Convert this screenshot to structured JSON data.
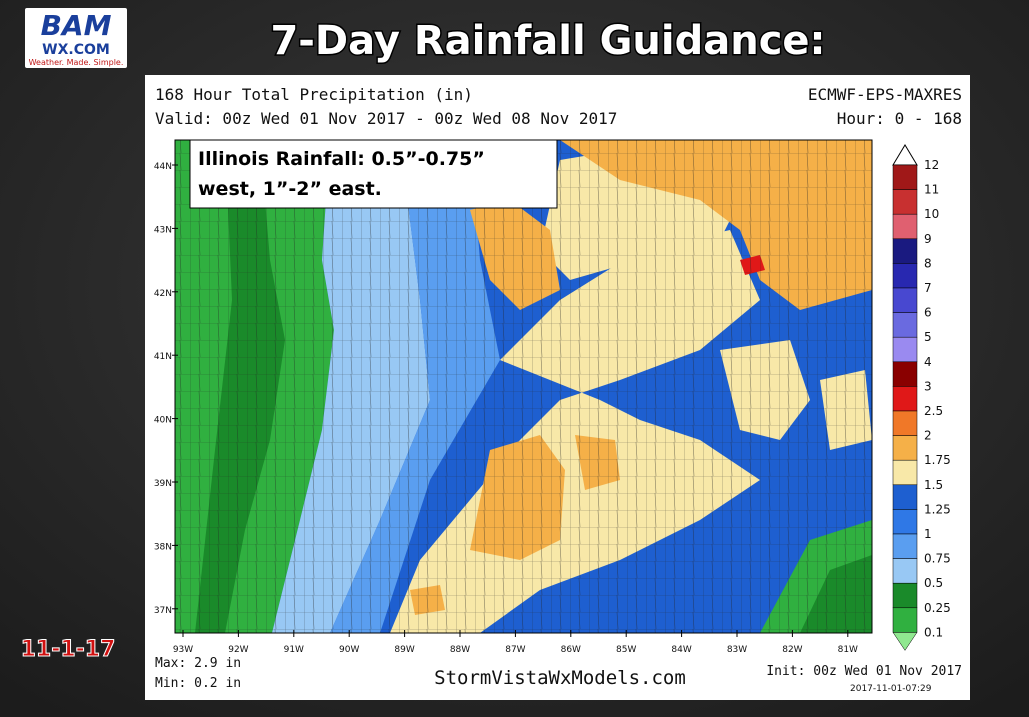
{
  "logo": {
    "brand": "BAM",
    "site": "WX.COM",
    "tagline": "Weather. Made. Simple."
  },
  "title": "7-Day Rainfall Guidance:",
  "date_stamp": "11-1-17",
  "map": {
    "product": "168 Hour Total Precipitation (in)",
    "model": "ECMWF-EPS-MAXRES",
    "valid": "Valid: 00z Wed 01 Nov 2017 - 00z Wed 08 Nov 2017",
    "hour": "Hour: 0 - 168",
    "annotation": [
      "Illinois Rainfall: 0.5”-0.75”",
      "west, 1”-2” east."
    ],
    "lat_labels": [
      "44N",
      "43N",
      "42N",
      "41N",
      "40N",
      "39N",
      "38N",
      "37N"
    ],
    "lon_labels": [
      "93W",
      "92W",
      "91W",
      "90W",
      "89W",
      "88W",
      "87W",
      "86W",
      "85W",
      "84W",
      "83W",
      "82W",
      "81W"
    ],
    "legend": [
      {
        "value": 12,
        "color": "#a01818"
      },
      {
        "value": 11,
        "color": "#c83030"
      },
      {
        "value": 10,
        "color": "#e06070"
      },
      {
        "value": 9,
        "color": "#1a1a80"
      },
      {
        "value": 8,
        "color": "#2828b0"
      },
      {
        "value": 7,
        "color": "#4848d0"
      },
      {
        "value": 6,
        "color": "#6a6ae0"
      },
      {
        "value": 5,
        "color": "#9a8af0"
      },
      {
        "value": 4,
        "color": "#8a0000"
      },
      {
        "value": 3,
        "color": "#e01818"
      },
      {
        "value": 2.5,
        "color": "#f07828"
      },
      {
        "value": 2,
        "color": "#f5b048"
      },
      {
        "value": 1.75,
        "color": "#f8e8a8"
      },
      {
        "value": 1.5,
        "color": "#1e5fd0"
      },
      {
        "value": 1.25,
        "color": "#2f78e6"
      },
      {
        "value": 1,
        "color": "#5a9ef0"
      },
      {
        "value": 0.75,
        "color": "#98c8f4"
      },
      {
        "value": 0.5,
        "color": "#1a8a2a"
      },
      {
        "value": 0.25,
        "color": "#30b040"
      },
      {
        "value": 0.1,
        "color": "#90e890"
      }
    ],
    "max": "Max: 2.9 in",
    "min": "Min: 0.2 in",
    "source": "StormVistaWxModels.com",
    "init": "Init: 00z Wed 01 Nov 2017",
    "timestamp": "2017-11-01-07:29"
  }
}
